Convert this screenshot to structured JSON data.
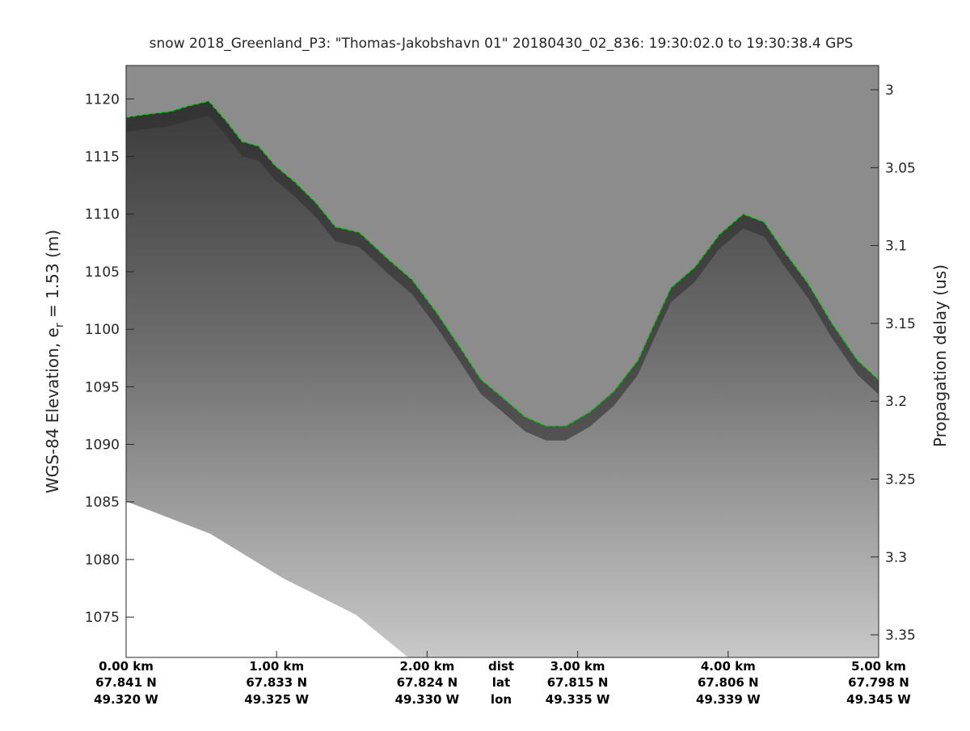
{
  "chart_data": {
    "type": "echogram",
    "title": "snow 2018_Greenland_P3: \"Thomas-Jakobshavn 01\"  20180430_02_836: 19:30:02.0 to 19:30:38.4 GPS",
    "y_label_parts": [
      "WGS-84 Elevation, e",
      "r",
      " = 1.53 (m)"
    ],
    "y2_label": "Propagation delay (us)",
    "xlim": [
      0,
      5
    ],
    "xticks": [
      {
        "value": 0,
        "label": "0.00 km"
      },
      {
        "value": 1,
        "label": "1.00 km"
      },
      {
        "value": 2,
        "label": "2.00 km"
      },
      {
        "value": 3,
        "label": "3.00 km"
      },
      {
        "value": 4,
        "label": "4.00 km"
      },
      {
        "value": 5,
        "label": "5.00 km"
      }
    ],
    "lat_labels": [
      "67.841 N",
      "67.833 N",
      "67.824 N",
      "67.815 N",
      "67.806 N",
      "67.798 N"
    ],
    "lon_labels": [
      "49.320 W",
      "49.325 W",
      "49.330 W",
      "49.335 W",
      "49.339 W",
      "49.345 W"
    ],
    "row_headers": [
      "dist",
      "lat",
      "lon"
    ],
    "ylim": [
      1071.5,
      1122.9
    ],
    "yticks": [
      1075,
      1080,
      1085,
      1090,
      1095,
      1100,
      1105,
      1110,
      1115,
      1120
    ],
    "y2lim": [
      2.9844,
      3.3645
    ],
    "y2ticks": [
      3,
      3.05,
      3.1,
      3.15,
      3.2,
      3.25,
      3.3,
      3.35
    ],
    "surface": {
      "color": "#00d000",
      "x": [
        0,
        0.1,
        0.29,
        0.42,
        0.55,
        0.67,
        0.77,
        0.88,
        0.99,
        1.12,
        1.26,
        1.39,
        1.55,
        1.74,
        1.9,
        2.06,
        2.22,
        2.36,
        2.49,
        2.65,
        2.79,
        2.92,
        3.08,
        3.24,
        3.4,
        3.51,
        3.62,
        3.78,
        3.94,
        4.1,
        4.24,
        4.37,
        4.53,
        4.69,
        4.86,
        5.0
      ],
      "y": [
        1118.4,
        1118.6,
        1118.9,
        1119.4,
        1119.8,
        1118.0,
        1116.3,
        1115.9,
        1114.2,
        1112.8,
        1111.0,
        1108.9,
        1108.4,
        1106.1,
        1104.3,
        1101.5,
        1098.4,
        1095.6,
        1094.2,
        1092.4,
        1091.6,
        1091.6,
        1092.8,
        1094.6,
        1097.3,
        1100.5,
        1103.6,
        1105.4,
        1108.2,
        1110.0,
        1109.3,
        1106.8,
        1104.0,
        1100.5,
        1097.3,
        1095.6
      ]
    }
  }
}
